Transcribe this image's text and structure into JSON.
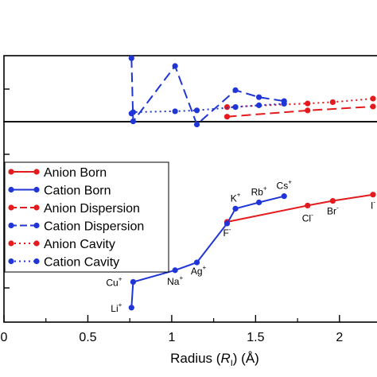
{
  "chart_data": {
    "type": "line",
    "xlabel_prefix": "Radius (",
    "xlabel_var": "R",
    "xlabel_sub": "I",
    "xlabel_suffix": ") (Å)",
    "xlim": [
      0,
      2.2
    ],
    "x_ticks": [
      {
        "value": 0,
        "label": "0"
      },
      {
        "value": 0.5,
        "label": "0.5"
      },
      {
        "value": 1,
        "label": "1"
      },
      {
        "value": 1.5,
        "label": "1.5"
      },
      {
        "value": 2,
        "label": "2"
      }
    ],
    "grid": false,
    "legend_position": "left-middle",
    "colors": {
      "anion": "#e41a1c",
      "cation": "#1f35d6"
    },
    "series": [
      {
        "name": "Anion Born",
        "color": "#e41a1c",
        "dash": "solid",
        "panel": "lower",
        "points": [
          {
            "x": 1.33,
            "y": 0.0
          },
          {
            "x": 1.81,
            "y": 0.21
          },
          {
            "x": 1.96,
            "y": 0.27
          },
          {
            "x": 2.2,
            "y": 0.35
          }
        ]
      },
      {
        "name": "Cation Born",
        "color": "#1f35d6",
        "dash": "solid",
        "panel": "lower",
        "points": [
          {
            "x": 0.76,
            "y": -1.1
          },
          {
            "x": 0.77,
            "y": -0.77
          },
          {
            "x": 1.02,
            "y": -0.62
          },
          {
            "x": 1.15,
            "y": -0.52
          },
          {
            "x": 1.33,
            "y": -0.02
          },
          {
            "x": 1.38,
            "y": 0.17
          },
          {
            "x": 1.52,
            "y": 0.25
          },
          {
            "x": 1.67,
            "y": 0.33
          }
        ]
      },
      {
        "name": "Anion Dispersion",
        "color": "#e41a1c",
        "dash": "dashed",
        "panel": "lower",
        "points": [
          {
            "x": 1.33,
            "y": 1.35
          },
          {
            "x": 1.81,
            "y": 1.43
          },
          {
            "x": 2.2,
            "y": 1.48
          }
        ]
      },
      {
        "name": "Cation Dispersion",
        "color": "#1f35d6",
        "dash": "dashed",
        "panel": "lower",
        "points": [
          {
            "x": 0.76,
            "y": 2.1
          },
          {
            "x": 0.77,
            "y": 1.29
          },
          {
            "x": 1.02,
            "y": 2.0
          },
          {
            "x": 1.15,
            "y": 1.25
          },
          {
            "x": 1.38,
            "y": 1.69
          },
          {
            "x": 1.52,
            "y": 1.6
          },
          {
            "x": 1.67,
            "y": 1.55
          }
        ]
      },
      {
        "name": "Anion Cavity",
        "color": "#e41a1c",
        "dash": "dotted",
        "panel": "upper",
        "points": [
          {
            "x": 1.33,
            "y": 0.55
          },
          {
            "x": 1.81,
            "y": 0.71
          },
          {
            "x": 1.96,
            "y": 0.77
          },
          {
            "x": 2.2,
            "y": 0.93
          }
        ]
      },
      {
        "name": "Cation Cavity",
        "color": "#1f35d6",
        "dash": "dotted",
        "panel": "upper",
        "points": [
          {
            "x": 0.76,
            "y": 0.26
          },
          {
            "x": 0.77,
            "y": 0.32
          },
          {
            "x": 1.02,
            "y": 0.36
          },
          {
            "x": 1.15,
            "y": 0.4
          },
          {
            "x": 1.38,
            "y": 0.55
          },
          {
            "x": 1.52,
            "y": 0.63
          },
          {
            "x": 1.67,
            "y": 0.7
          }
        ]
      }
    ],
    "point_labels": [
      {
        "base": "Li",
        "charge": "+",
        "x": 0.76,
        "y": -1.1
      },
      {
        "base": "Cu",
        "charge": "+",
        "x": 0.77,
        "y": -0.77
      },
      {
        "base": "Na",
        "charge": "+",
        "x": 1.02,
        "y": -0.62
      },
      {
        "base": "Ag",
        "charge": "+",
        "x": 1.15,
        "y": -0.52
      },
      {
        "base": "F",
        "charge": "-",
        "x": 1.33,
        "y": 0.0
      },
      {
        "base": "K",
        "charge": "+",
        "x": 1.38,
        "y": 0.17
      },
      {
        "base": "Rb",
        "charge": "+",
        "x": 1.52,
        "y": 0.25
      },
      {
        "base": "Cs",
        "charge": "+",
        "x": 1.67,
        "y": 0.33
      },
      {
        "base": "Cl",
        "charge": "-",
        "x": 1.81,
        "y": 0.21
      },
      {
        "base": "Br",
        "charge": "-",
        "x": 1.96,
        "y": 0.27
      },
      {
        "base": "I",
        "charge": "-",
        "x": 2.2,
        "y": 0.35
      }
    ]
  }
}
